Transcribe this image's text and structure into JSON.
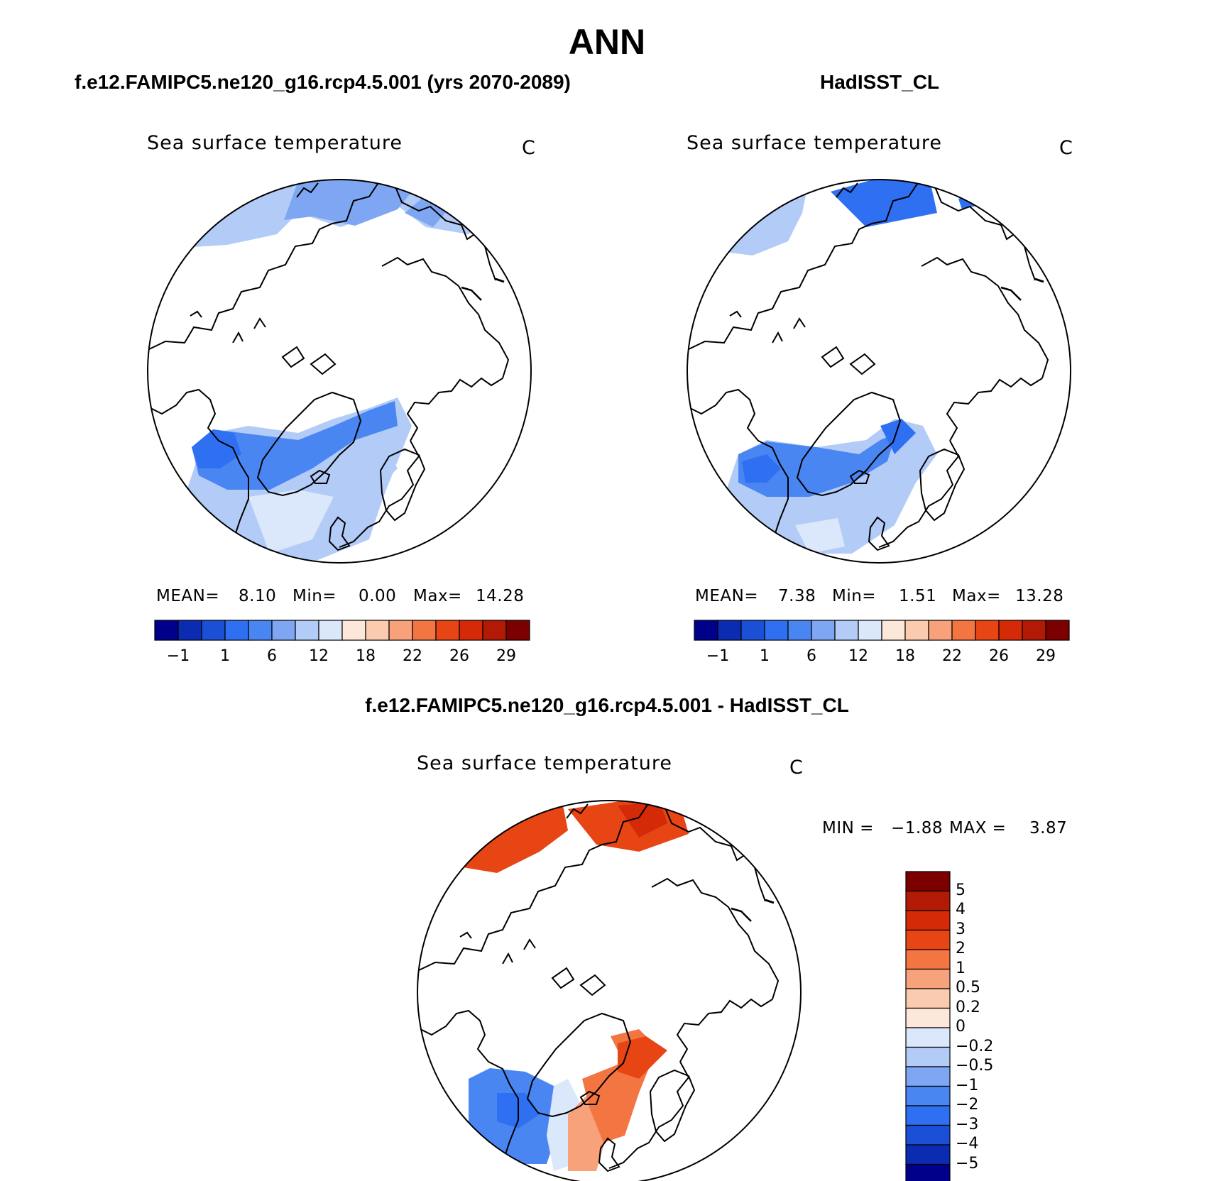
{
  "title": "ANN",
  "panels": {
    "left": {
      "case": "f.e12.FAMIPC5.ne120_g16.rcp4.5.001 (yrs 2070-2089)",
      "variable": "Sea surface temperature",
      "units": "C",
      "stats": {
        "mean_label": "MEAN=",
        "mean": "8.10",
        "min_label": "Min=",
        "min": "0.00",
        "max_label": "Max=",
        "max": "14.28"
      }
    },
    "right": {
      "case": "HadISST_CL",
      "variable": "Sea surface temperature",
      "units": "C",
      "stats": {
        "mean_label": "MEAN=",
        "mean": "7.38",
        "min_label": "Min=",
        "min": "1.51",
        "max_label": "Max=",
        "max": "13.28"
      }
    },
    "diff": {
      "case": "f.e12.FAMIPC5.ne120_g16.rcp4.5.001 - HadISST_CL",
      "variable": "Sea surface temperature",
      "units": "C",
      "stats": {
        "min_label": "MIN =",
        "min": "−1.88",
        "max_label": "MAX =",
        "max": "3.87"
      }
    }
  },
  "colorbar_abs": {
    "colors": [
      "#00008b",
      "#0b2bb0",
      "#1a4fd6",
      "#2f6ff2",
      "#4a86f2",
      "#7ea6f3",
      "#b2cbf7",
      "#dbe8fb",
      "#fde7d8",
      "#fbcbb0",
      "#f7a27a",
      "#f37542",
      "#e84515",
      "#d42a08",
      "#b31a05",
      "#7d0000"
    ],
    "ticks": [
      "−1",
      "1",
      "6",
      "12",
      "18",
      "22",
      "26",
      "29"
    ]
  },
  "colorbar_diff": {
    "colors": [
      "#7d0000",
      "#b31a05",
      "#d42a08",
      "#e84515",
      "#f37542",
      "#f7a27a",
      "#fbcbb0",
      "#fde7d8",
      "#dbe8fb",
      "#b2cbf7",
      "#7ea6f3",
      "#4a86f2",
      "#2f6ff2",
      "#1a4fd6",
      "#0b2bb0",
      "#00008b"
    ],
    "labels": [
      "5",
      "4",
      "3",
      "2",
      "1",
      "0.5",
      "0.2",
      "0",
      "−0.2",
      "−0.5",
      "−1",
      "−2",
      "−3",
      "−4",
      "−5"
    ]
  }
}
